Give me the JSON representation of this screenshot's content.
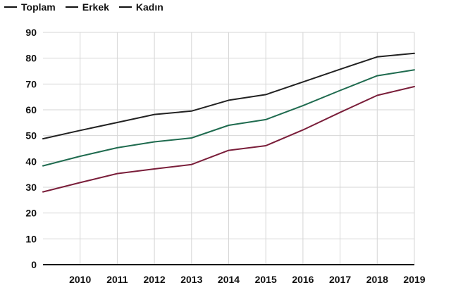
{
  "chart_data": {
    "type": "line",
    "x": [
      "2009",
      "2010",
      "2011",
      "2012",
      "2013",
      "2014",
      "2015",
      "2016",
      "2017",
      "2018",
      "2019"
    ],
    "xtick_labels": [
      "2010",
      "2011",
      "2012",
      "2013",
      "2014",
      "2015",
      "2016",
      "2017",
      "2018",
      "2019"
    ],
    "ylim": [
      0,
      90
    ],
    "yticks": [
      0,
      10,
      20,
      30,
      40,
      50,
      60,
      70,
      80,
      90
    ],
    "grid": true,
    "legend_position": "top-left",
    "series": [
      {
        "name": "Toplam",
        "color": "#1f6b4f",
        "values": [
          38.3,
          42.0,
          45.3,
          47.6,
          49.1,
          54.0,
          56.2,
          61.6,
          67.5,
          73.2,
          75.5
        ]
      },
      {
        "name": "Erkek",
        "color": "#222222",
        "values": [
          48.8,
          52.0,
          55.1,
          58.2,
          59.5,
          63.7,
          65.9,
          70.8,
          75.7,
          80.5,
          81.9
        ]
      },
      {
        "name": "Kadın",
        "color": "#7a1e3a",
        "values": [
          28.2,
          31.8,
          35.3,
          37.1,
          38.8,
          44.3,
          46.1,
          52.2,
          59.0,
          65.6,
          69.0
        ]
      }
    ],
    "title": "",
    "xlabel": "",
    "ylabel": ""
  }
}
